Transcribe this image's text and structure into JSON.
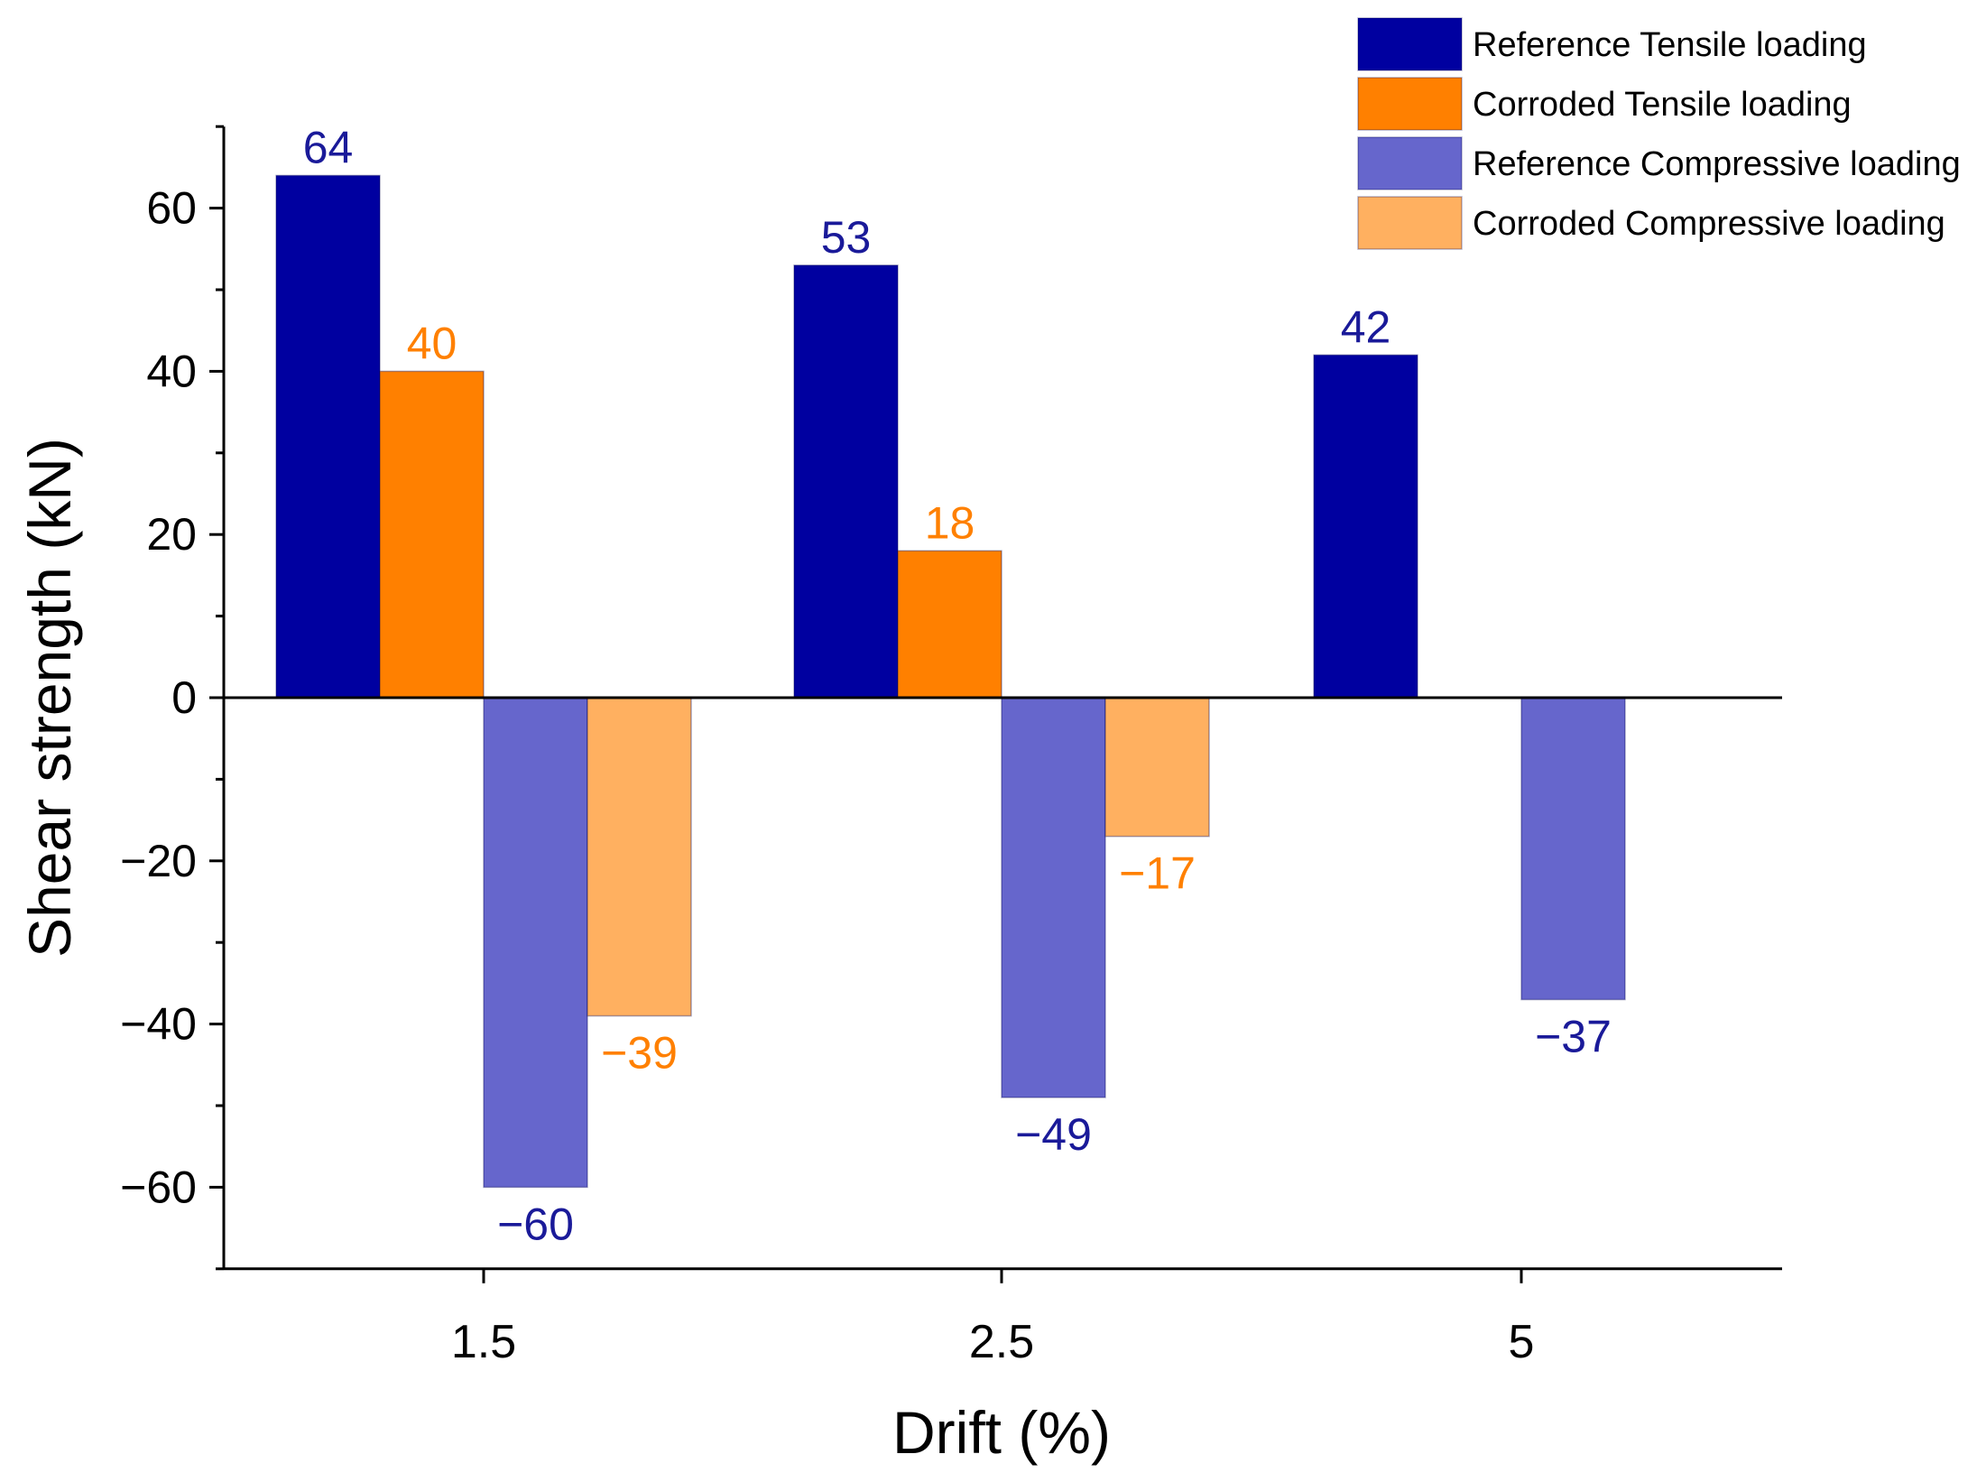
{
  "chart_data": {
    "type": "bar",
    "title": "",
    "xlabel": "Drift (%)",
    "ylabel": "Shear strength (kN)",
    "categories": [
      "1.5",
      "2.5",
      "5"
    ],
    "ylim": [
      -70,
      70
    ],
    "yticks": [
      -60,
      -40,
      -20,
      0,
      20,
      40,
      60
    ],
    "ytick_labels": [
      "−60",
      "−40",
      "−20",
      "0",
      "20",
      "40",
      "60"
    ],
    "grid": false,
    "legend_position": "top-right",
    "series": [
      {
        "name": "Reference Tensile loading",
        "color": "#0000a0",
        "label_color": "#1a1a99",
        "values": [
          64,
          53,
          42
        ],
        "value_labels": [
          "64",
          "53",
          "42"
        ]
      },
      {
        "name": "Corroded Tensile loading",
        "color": "#ff8000",
        "label_color": "#ff8000",
        "values": [
          40,
          18,
          null
        ],
        "value_labels": [
          "40",
          "18",
          ""
        ]
      },
      {
        "name": "Reference Compressive loading",
        "color": "#6666cc",
        "label_color": "#1a1a99",
        "values": [
          -60,
          -49,
          -37
        ],
        "value_labels": [
          "−60",
          "−49",
          "−37"
        ]
      },
      {
        "name": "Corroded Compressive loading",
        "color": "#ffb060",
        "label_color": "#ff8000",
        "values": [
          -39,
          -17,
          null
        ],
        "value_labels": [
          "−39",
          "−17",
          ""
        ]
      }
    ]
  }
}
